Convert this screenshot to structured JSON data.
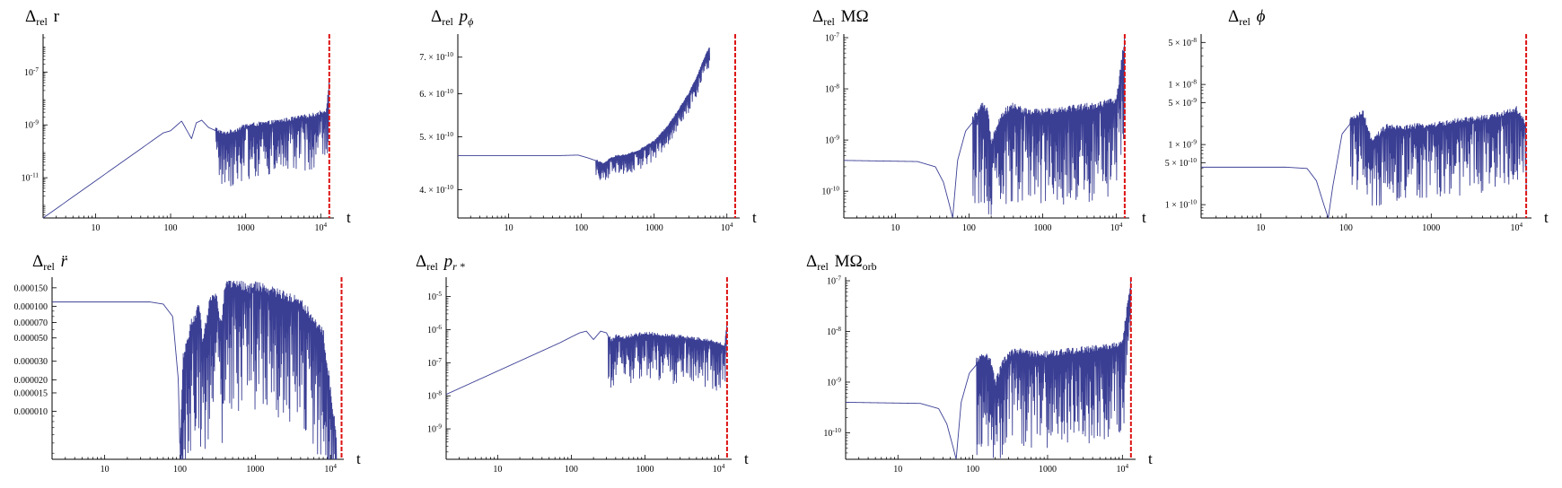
{
  "figure": {
    "xlabel": "t",
    "x_tick_labels": [
      "10",
      "100",
      "1000",
      "10^4"
    ]
  },
  "chart_data": [
    {
      "id": "p1",
      "type": "line",
      "title_pre": "Δ",
      "title_sub": "rel",
      "title_main": " r",
      "title_main_italic": false,
      "title_main_sub": "",
      "xlabel": "t",
      "xscale": "log",
      "yscale": "log",
      "xlim": [
        2,
        15000
      ],
      "ylim": [
        3e-13,
        2e-06
      ],
      "x_ticks": [
        10,
        100,
        1000,
        10000
      ],
      "x_tick_labels": [
        "10",
        "100",
        "1000",
        "10^4"
      ],
      "y_ticks": [
        1e-11,
        1e-09,
        1e-07
      ],
      "y_tick_labels": [
        "10^-11",
        "10^-9",
        "10^-7"
      ],
      "line_color": "#3b3f94",
      "marker_color": "#dd1111",
      "marker_x": 13000,
      "series": [
        {
          "x": [
            2,
            80,
            100,
            140,
            190,
            220,
            260,
            320,
            400,
            500,
            700,
            1000,
            2000,
            4000,
            8000,
            12000,
            13000
          ],
          "y": [
            3e-13,
            5e-10,
            6e-10,
            1.4e-09,
            3e-10,
            1.2e-09,
            1.5e-09,
            8e-10,
            6e-10,
            4e-10,
            5e-10,
            8e-10,
            1e-09,
            1.4e-09,
            2e-09,
            3e-09,
            6e-08
          ]
        }
      ]
    },
    {
      "id": "p2",
      "type": "line",
      "title_pre": "Δ",
      "title_sub": "rel",
      "title_main": " p",
      "title_main_italic": true,
      "title_main_sub": "ϕ",
      "xlabel": "t",
      "xscale": "log",
      "yscale": "log",
      "xlim": [
        2,
        15000
      ],
      "ylim": [
        3.55e-10,
        7.6e-10
      ],
      "x_ticks": [
        10,
        100,
        1000,
        10000
      ],
      "x_tick_labels": [
        "10",
        "100",
        "1000",
        "10^4"
      ],
      "y_ticks": [
        4e-10,
        5e-10,
        6e-10,
        7e-10
      ],
      "y_tick_labels": [
        "4. × 10^-10",
        "5. × 10^-10",
        "6. × 10^-10",
        "7. × 10^-10"
      ],
      "line_color": "#3b3f94",
      "marker_color": "#dd1111",
      "marker_x": 13000,
      "series": [
        {
          "x": [
            2,
            50,
            90,
            120,
            160,
            200,
            250,
            300,
            400,
            600,
            1000,
            1500,
            2000,
            3000,
            4000,
            5000,
            5800
          ],
          "y": [
            4.62e-10,
            4.62e-10,
            4.63e-10,
            4.58e-10,
            4.52e-10,
            4.45e-10,
            4.55e-10,
            4.6e-10,
            4.62e-10,
            4.7e-10,
            4.9e-10,
            5.2e-10,
            5.5e-10,
            6e-10,
            6.5e-10,
            7e-10,
            7.3e-10
          ]
        }
      ]
    },
    {
      "id": "p3",
      "type": "line",
      "title_pre": "Δ",
      "title_sub": "rel",
      "title_main": " MΩ",
      "title_main_italic": false,
      "title_main_sub": "",
      "xlabel": "t",
      "xscale": "log",
      "yscale": "log",
      "xlim": [
        2,
        15000
      ],
      "ylim": [
        3e-11,
        1e-07
      ],
      "x_ticks": [
        10,
        100,
        1000,
        10000
      ],
      "x_tick_labels": [
        "10",
        "100",
        "1000",
        "10^4"
      ],
      "y_ticks": [
        1e-10,
        1e-09,
        1e-08,
        1e-07
      ],
      "y_tick_labels": [
        "10^-10",
        "10^-9",
        "10^-8",
        "10^-7"
      ],
      "line_color": "#3b3f94",
      "marker_color": "#dd1111",
      "marker_x": 13000,
      "series": [
        {
          "x": [
            2,
            20,
            35,
            45,
            55,
            60,
            70,
            90,
            120,
            150,
            180,
            200,
            250,
            300,
            400,
            600,
            1000,
            2000,
            5000,
            10000,
            13000
          ],
          "y": [
            4e-10,
            3.8e-10,
            3e-10,
            1.5e-10,
            5e-11,
            3e-11,
            4e-10,
            1.5e-09,
            2.5e-09,
            4e-09,
            3e-09,
            8e-10,
            2e-09,
            3e-09,
            4e-09,
            3e-09,
            3e-09,
            3.5e-09,
            4e-09,
            5e-09,
            9e-08
          ]
        }
      ]
    },
    {
      "id": "p4",
      "type": "line",
      "title_pre": "Δ",
      "title_sub": "rel",
      "title_main": " ϕ",
      "title_main_italic": true,
      "title_main_sub": "",
      "xlabel": "t",
      "xscale": "log",
      "yscale": "log",
      "xlim": [
        2,
        15000
      ],
      "ylim": [
        6e-11,
        6e-08
      ],
      "x_ticks": [
        10,
        100,
        1000,
        10000
      ],
      "x_tick_labels": [
        "10",
        "100",
        "1000",
        "10^4"
      ],
      "y_ticks": [
        1e-10,
        5e-10,
        1e-09,
        5e-09,
        1e-08,
        5e-08
      ],
      "y_tick_labels": [
        "1 × 10^-10",
        "5 × 10^-10",
        "1 × 10^-9",
        "5 × 10^-9",
        "1 × 10^-8",
        "5 × 10^-8"
      ],
      "line_color": "#3b3f94",
      "marker_color": "#dd1111",
      "marker_x": 13000,
      "series": [
        {
          "x": [
            2,
            20,
            35,
            45,
            55,
            62,
            70,
            90,
            120,
            160,
            200,
            260,
            300,
            400,
            600,
            1000,
            2000,
            5000,
            10000,
            13000
          ],
          "y": [
            4.2e-10,
            4.2e-10,
            4e-10,
            2.5e-10,
            1e-10,
            6e-11,
            2e-10,
            1.5e-09,
            2.5e-09,
            3e-09,
            1e-09,
            1.5e-09,
            1.8e-09,
            1.7e-09,
            1.8e-09,
            1.9e-09,
            2.2e-09,
            2.6e-09,
            3.5e-09,
            2e-09
          ]
        }
      ]
    },
    {
      "id": "p5",
      "type": "line",
      "title_pre": "Δ",
      "title_sub": "rel",
      "title_main": " r̈",
      "title_main_italic": true,
      "title_main_sub": "",
      "xlabel": "t",
      "xscale": "log",
      "yscale": "log",
      "xlim": [
        2,
        15000
      ],
      "ylim": [
        3.5e-06,
        0.000175
      ],
      "x_ticks": [
        10,
        100,
        1000,
        10000
      ],
      "x_tick_labels": [
        "10",
        "100",
        "1000",
        "10^4"
      ],
      "y_ticks": [
        1e-05,
        1.5e-05,
        2e-05,
        3e-05,
        5e-05,
        7e-05,
        0.0001,
        0.00015
      ],
      "y_tick_labels": [
        "0.000010",
        "0.000015",
        "0.000020",
        "0.000030",
        "0.000050",
        "0.000070",
        "0.000100",
        "0.000150"
      ],
      "line_color": "#3b3f94",
      "marker_color": "#dd1111",
      "marker_x": 14000,
      "series": [
        {
          "x": [
            2,
            20,
            40,
            60,
            80,
            95,
            100,
            110,
            140,
            180,
            200,
            250,
            300,
            350,
            400,
            450,
            500,
            600,
            800,
            1000,
            2000,
            4000,
            8000,
            12000
          ],
          "y": [
            0.00011,
            0.00011,
            0.00011,
            0.000105,
            8e-05,
            2e-05,
            4e-06,
            3e-05,
            6e-05,
            9e-05,
            4e-05,
            0.0001,
            0.00012,
            6e-05,
            0.00014,
            0.00016,
            0.00014,
            0.00015,
            0.00013,
            0.00014,
            0.00012,
            0.0001,
            5e-05,
            5e-06
          ]
        }
      ]
    },
    {
      "id": "p6",
      "type": "line",
      "title_pre": "Δ",
      "title_sub": "rel",
      "title_main": " p",
      "title_main_italic": true,
      "title_main_sub": "r *",
      "xlabel": "t",
      "xscale": "log",
      "yscale": "log",
      "xlim": [
        2,
        15000
      ],
      "ylim": [
        1.2e-10,
        3e-05
      ],
      "x_ticks": [
        10,
        100,
        1000,
        10000
      ],
      "x_tick_labels": [
        "10",
        "100",
        "1000",
        "10^4"
      ],
      "y_ticks": [
        1e-09,
        1e-08,
        1e-07,
        1e-06,
        1e-05
      ],
      "y_tick_labels": [
        "10^-9",
        "10^-8",
        "10^-7",
        "10^-6",
        "10^-5"
      ],
      "line_color": "#3b3f94",
      "marker_color": "#dd1111",
      "marker_x": 13000,
      "series": [
        {
          "x": [
            2,
            70,
            100,
            130,
            160,
            200,
            250,
            300,
            350,
            400,
            500,
            700,
            1000,
            2000,
            4000,
            8000,
            12000,
            13000
          ],
          "y": [
            1.1e-08,
            4e-07,
            6e-07,
            8e-07,
            9e-07,
            5e-07,
            9e-07,
            8e-07,
            4e-07,
            6e-07,
            5e-07,
            6e-07,
            7e-07,
            6e-07,
            5e-07,
            4e-07,
            3e-07,
            1.5e-06
          ]
        }
      ]
    },
    {
      "id": "p7",
      "type": "line",
      "title_pre": "Δ",
      "title_sub": "rel",
      "title_main": " MΩ",
      "title_main_italic": false,
      "title_main_sub": "orb",
      "xlabel": "t",
      "xscale": "log",
      "yscale": "log",
      "xlim": [
        2,
        15000
      ],
      "ylim": [
        3e-11,
        1e-07
      ],
      "x_ticks": [
        10,
        100,
        1000,
        10000
      ],
      "x_tick_labels": [
        "10",
        "100",
        "1000",
        "10^4"
      ],
      "y_ticks": [
        1e-10,
        1e-09,
        1e-08,
        1e-07
      ],
      "y_tick_labels": [
        "10^-10",
        "10^-9",
        "10^-8",
        "10^-7"
      ],
      "line_color": "#3b3f94",
      "marker_color": "#dd1111",
      "marker_x": 13000,
      "series": [
        {
          "x": [
            2,
            20,
            35,
            45,
            55,
            60,
            70,
            90,
            120,
            150,
            180,
            200,
            250,
            300,
            400,
            600,
            1000,
            2000,
            5000,
            10000,
            13000
          ],
          "y": [
            4e-10,
            3.8e-10,
            3e-10,
            1.5e-10,
            5e-11,
            3e-11,
            4e-10,
            1.5e-09,
            2.5e-09,
            3e-09,
            2e-09,
            8e-10,
            2e-09,
            3e-09,
            3.5e-09,
            3e-09,
            3e-09,
            3.5e-09,
            4e-09,
            5e-09,
            9e-08
          ]
        }
      ]
    }
  ]
}
